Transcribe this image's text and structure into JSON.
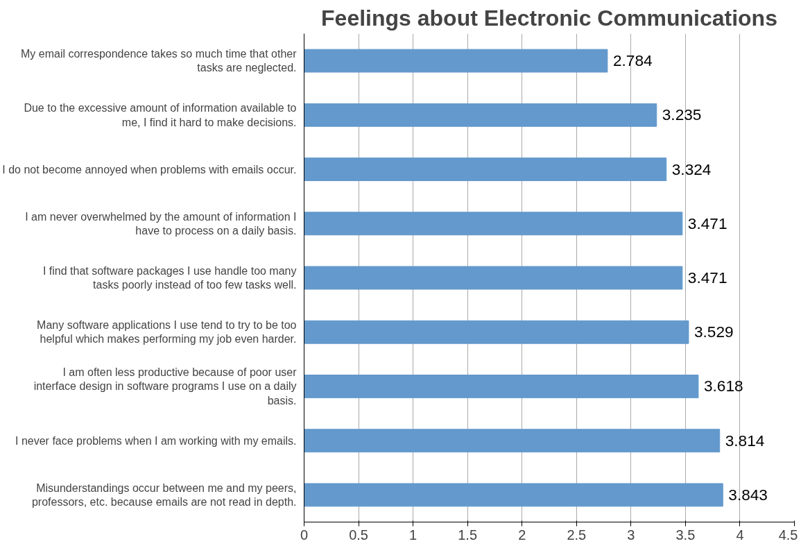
{
  "chart_data": {
    "type": "bar",
    "orientation": "horizontal",
    "title": "Feelings about Electronic Communications",
    "categories": [
      "My email correspondence takes so much time that other tasks are neglected.",
      "Due to the excessive amount of information available to me, I find it hard to make decisions.",
      "I do not become annoyed when problems with emails occur.",
      "I am never overwhelmed by the amount of information I have to process on a daily basis.",
      "I find that software packages I use handle too many tasks poorly instead of too few tasks well.",
      "Many software applications I use tend to try to be too helpful which makes performing my job even harder.",
      "I am often less productive because of poor user interface design in software programs I use on a daily basis.",
      "I never face problems when I am working with my emails.",
      "Misunderstandings occur between me and my peers, professors, etc. because emails are not read in depth."
    ],
    "values": [
      2.784,
      3.235,
      3.324,
      3.471,
      3.471,
      3.529,
      3.618,
      3.814,
      3.843
    ],
    "color": "#6399cc",
    "data_labels": true,
    "xlim": [
      0,
      4.5
    ],
    "xticks": [
      0,
      0.5,
      1,
      1.5,
      2,
      2.5,
      3,
      3.5,
      4,
      4.5
    ],
    "grid": "x"
  }
}
